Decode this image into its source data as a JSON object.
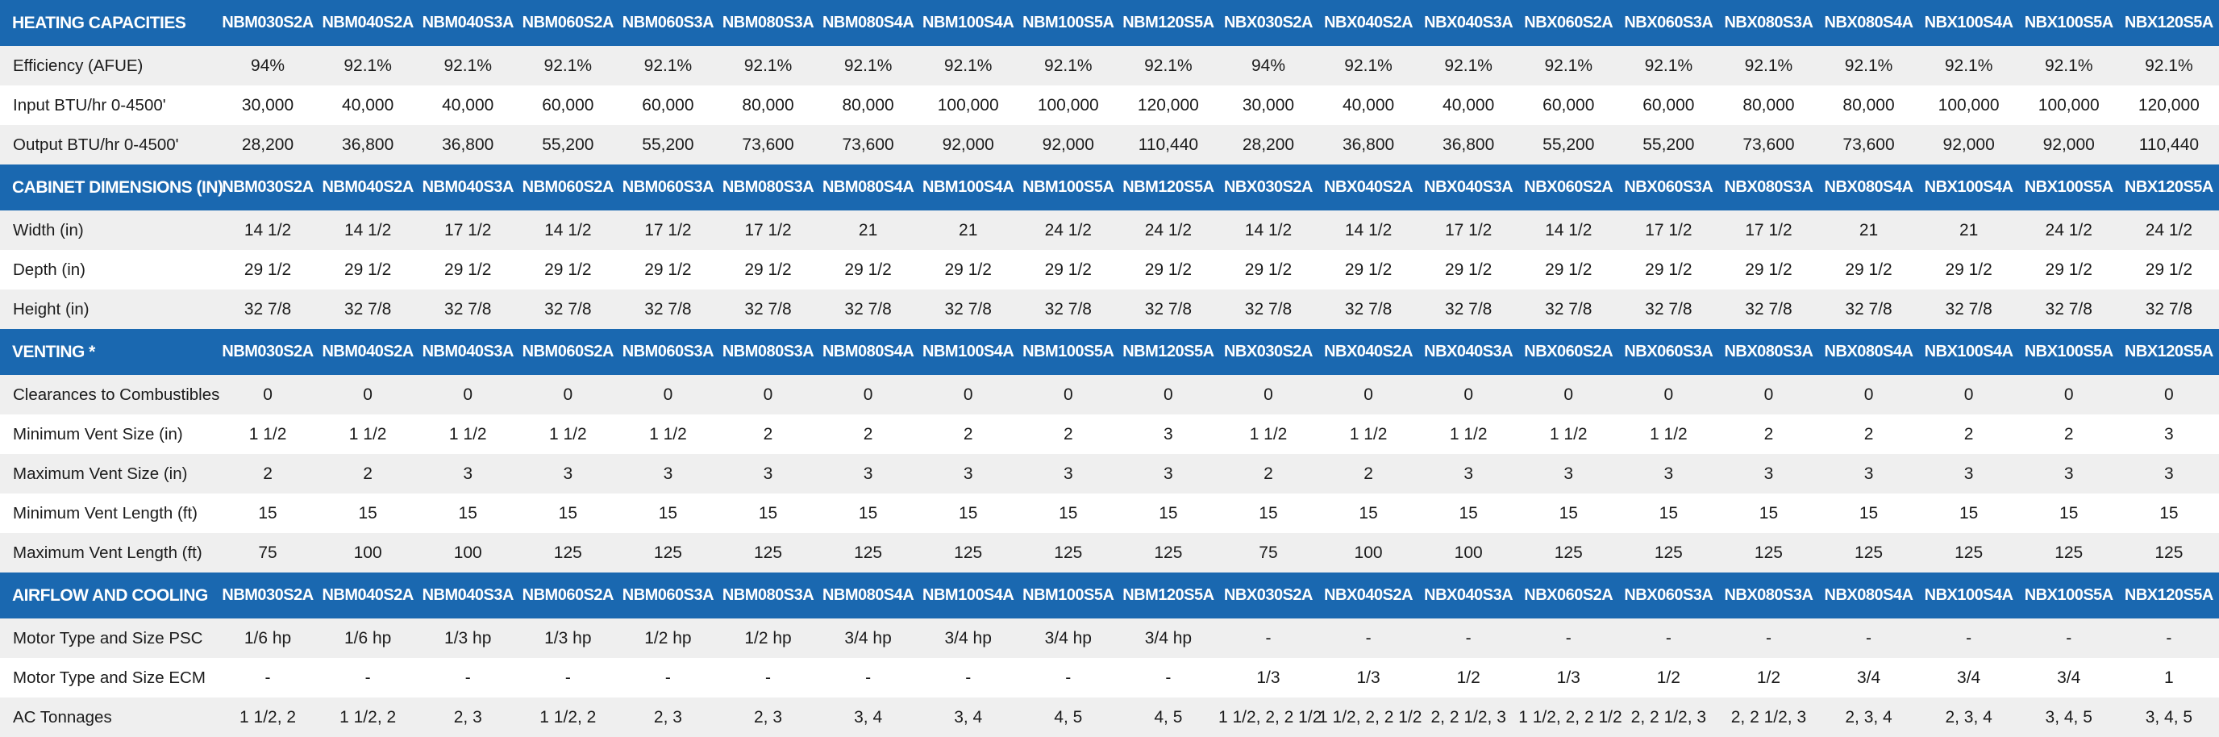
{
  "models": [
    "NBM030S2A",
    "NBM040S2A",
    "NBM040S3A",
    "NBM060S2A",
    "NBM060S3A",
    "NBM080S3A",
    "NBM080S4A",
    "NBM100S4A",
    "NBM100S5A",
    "NBM120S5A",
    "NBX030S2A",
    "NBX040S2A",
    "NBX040S3A",
    "NBX060S2A",
    "NBX060S3A",
    "NBX080S3A",
    "NBX080S4A",
    "NBX100S4A",
    "NBX100S5A",
    "NBX120S5A"
  ],
  "sections": [
    {
      "title": "HEATING CAPACITIES",
      "rows": [
        {
          "label": "Efficiency (AFUE)",
          "values": [
            "94%",
            "92.1%",
            "92.1%",
            "92.1%",
            "92.1%",
            "92.1%",
            "92.1%",
            "92.1%",
            "92.1%",
            "92.1%",
            "94%",
            "92.1%",
            "92.1%",
            "92.1%",
            "92.1%",
            "92.1%",
            "92.1%",
            "92.1%",
            "92.1%",
            "92.1%"
          ]
        },
        {
          "label": "Input BTU/hr 0-4500'",
          "values": [
            "30,000",
            "40,000",
            "40,000",
            "60,000",
            "60,000",
            "80,000",
            "80,000",
            "100,000",
            "100,000",
            "120,000",
            "30,000",
            "40,000",
            "40,000",
            "60,000",
            "60,000",
            "80,000",
            "80,000",
            "100,000",
            "100,000",
            "120,000"
          ]
        },
        {
          "label": "Output BTU/hr 0-4500'",
          "values": [
            "28,200",
            "36,800",
            "36,800",
            "55,200",
            "55,200",
            "73,600",
            "73,600",
            "92,000",
            "92,000",
            "110,440",
            "28,200",
            "36,800",
            "36,800",
            "55,200",
            "55,200",
            "73,600",
            "73,600",
            "92,000",
            "92,000",
            "110,440"
          ]
        }
      ]
    },
    {
      "title": "CABINET DIMENSIONS (IN)",
      "rows": [
        {
          "label": "Width (in)",
          "values": [
            "14 1/2",
            "14 1/2",
            "17 1/2",
            "14 1/2",
            "17 1/2",
            "17 1/2",
            "21",
            "21",
            "24 1/2",
            "24 1/2",
            "14 1/2",
            "14 1/2",
            "17 1/2",
            "14 1/2",
            "17 1/2",
            "17 1/2",
            "21",
            "21",
            "24 1/2",
            "24 1/2"
          ]
        },
        {
          "label": "Depth (in)",
          "values": [
            "29 1/2",
            "29 1/2",
            "29 1/2",
            "29 1/2",
            "29 1/2",
            "29 1/2",
            "29 1/2",
            "29 1/2",
            "29 1/2",
            "29 1/2",
            "29 1/2",
            "29 1/2",
            "29 1/2",
            "29 1/2",
            "29 1/2",
            "29 1/2",
            "29 1/2",
            "29 1/2",
            "29 1/2",
            "29 1/2"
          ]
        },
        {
          "label": "Height (in)",
          "values": [
            "32 7/8",
            "32 7/8",
            "32 7/8",
            "32 7/8",
            "32 7/8",
            "32 7/8",
            "32 7/8",
            "32 7/8",
            "32 7/8",
            "32 7/8",
            "32 7/8",
            "32 7/8",
            "32 7/8",
            "32 7/8",
            "32 7/8",
            "32 7/8",
            "32 7/8",
            "32 7/8",
            "32 7/8",
            "32 7/8"
          ]
        }
      ]
    },
    {
      "title": "VENTING *",
      "rows": [
        {
          "label": "Clearances to Combustibles",
          "values": [
            "0",
            "0",
            "0",
            "0",
            "0",
            "0",
            "0",
            "0",
            "0",
            "0",
            "0",
            "0",
            "0",
            "0",
            "0",
            "0",
            "0",
            "0",
            "0",
            "0"
          ]
        },
        {
          "label": "Minimum Vent Size (in)",
          "values": [
            "1 1/2",
            "1 1/2",
            "1 1/2",
            "1 1/2",
            "1 1/2",
            "2",
            "2",
            "2",
            "2",
            "3",
            "1 1/2",
            "1 1/2",
            "1 1/2",
            "1 1/2",
            "1 1/2",
            "2",
            "2",
            "2",
            "2",
            "3"
          ]
        },
        {
          "label": "Maximum Vent Size (in)",
          "values": [
            "2",
            "2",
            "3",
            "3",
            "3",
            "3",
            "3",
            "3",
            "3",
            "3",
            "2",
            "2",
            "3",
            "3",
            "3",
            "3",
            "3",
            "3",
            "3",
            "3"
          ]
        },
        {
          "label": "Minimum Vent Length (ft)",
          "values": [
            "15",
            "15",
            "15",
            "15",
            "15",
            "15",
            "15",
            "15",
            "15",
            "15",
            "15",
            "15",
            "15",
            "15",
            "15",
            "15",
            "15",
            "15",
            "15",
            "15"
          ]
        },
        {
          "label": "Maximum Vent Length (ft)",
          "values": [
            "75",
            "100",
            "100",
            "125",
            "125",
            "125",
            "125",
            "125",
            "125",
            "125",
            "75",
            "100",
            "100",
            "125",
            "125",
            "125",
            "125",
            "125",
            "125",
            "125"
          ]
        }
      ]
    },
    {
      "title": "AIRFLOW AND COOLING",
      "rows": [
        {
          "label": "Motor Type and Size PSC",
          "values": [
            "1/6 hp",
            "1/6 hp",
            "1/3 hp",
            "1/3 hp",
            "1/2 hp",
            "1/2 hp",
            "3/4 hp",
            "3/4 hp",
            "3/4 hp",
            "3/4 hp",
            "-",
            "-",
            "-",
            "-",
            "-",
            "-",
            "-",
            "-",
            "-",
            "-"
          ]
        },
        {
          "label": "Motor Type and Size ECM",
          "values": [
            "-",
            "-",
            "-",
            "-",
            "-",
            "-",
            "-",
            "-",
            "-",
            "-",
            "1/3",
            "1/3",
            "1/2",
            "1/3",
            "1/2",
            "1/2",
            "3/4",
            "3/4",
            "3/4",
            "1"
          ]
        },
        {
          "label": "AC Tonnages",
          "values": [
            "1 1/2, 2",
            "1 1/2, 2",
            "2, 3",
            "1 1/2, 2",
            "2, 3",
            "2, 3",
            "3, 4",
            "3, 4",
            "4, 5",
            "4, 5",
            "1 1/2, 2, 2 1/2",
            "1 1/2, 2, 2 1/2",
            "2, 2 1/2, 3",
            "1 1/2, 2, 2 1/2",
            "2, 2 1/2, 3",
            "2, 2 1/2, 3",
            "2, 3, 4",
            "2, 3, 4",
            "3, 4, 5",
            "3, 4, 5"
          ]
        }
      ]
    }
  ]
}
